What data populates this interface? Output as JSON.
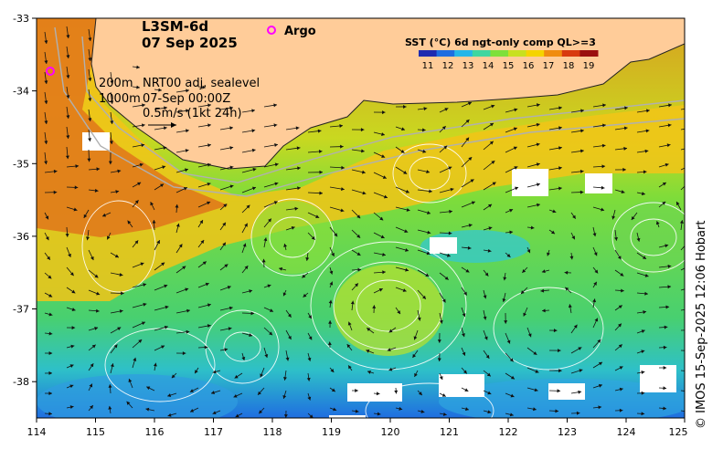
{
  "product": {
    "line1": "L3SM-6d",
    "line2": "07 Sep 2025"
  },
  "legend": {
    "argo_label": "Argo"
  },
  "colorbar": {
    "title": "SST (°C) 6d ngt-only comp QL>=3",
    "ticks": [
      "11",
      "12",
      "13",
      "14",
      "15",
      "16",
      "17",
      "18",
      "19"
    ],
    "colors": [
      "#1f2bb0",
      "#1f6ee0",
      "#25b6e8",
      "#3fd6a0",
      "#7ee03a",
      "#c8e020",
      "#f5d400",
      "#f08c10",
      "#d83a10",
      "#9a1010"
    ]
  },
  "annotations": {
    "isobath_200": "200m",
    "isobath_1000": "1000m",
    "sealevel": "NRT00 adj. sealevel",
    "datetime": "07-Sep 00:00Z",
    "scale": "0.5m/s (1kt 24h)"
  },
  "axes": {
    "x_ticks": [
      "114",
      "115",
      "116",
      "117",
      "118",
      "119",
      "120",
      "121",
      "122",
      "123",
      "124",
      "125"
    ],
    "y_ticks": [
      "-33",
      "-34",
      "-35",
      "-36",
      "-37",
      "-38"
    ],
    "xlim": [
      114,
      125
    ],
    "ylim": [
      -38.5,
      -33
    ]
  },
  "credit": "© IMOS 15-Sep-2025 12:06 Hobart"
}
